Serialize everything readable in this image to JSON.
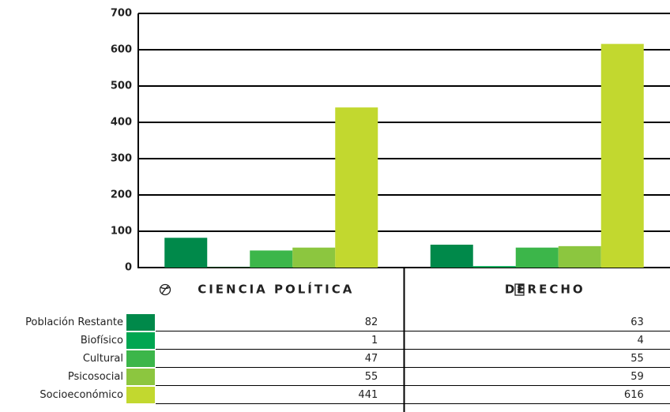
{
  "chart_data": {
    "type": "bar",
    "categories": [
      "CIENCIA POLÍTICA",
      "DERECHO"
    ],
    "series": [
      {
        "name": "Población Restante",
        "color": "#00894a",
        "values": [
          82,
          63
        ]
      },
      {
        "name": "Biofísico",
        "color": "#00a651",
        "values": [
          1,
          4
        ]
      },
      {
        "name": "Cultural",
        "color": "#3cb64a",
        "values": [
          47,
          55
        ]
      },
      {
        "name": "Psicosocial",
        "color": "#8cc63f",
        "values": [
          55,
          59
        ]
      },
      {
        "name": "Socioeconómico",
        "color": "#c2d82f",
        "values": [
          441,
          616
        ]
      }
    ],
    "ylim": [
      0,
      700
    ],
    "yticks": [
      0,
      100,
      200,
      300,
      400,
      500,
      600,
      700
    ],
    "grid": true
  }
}
